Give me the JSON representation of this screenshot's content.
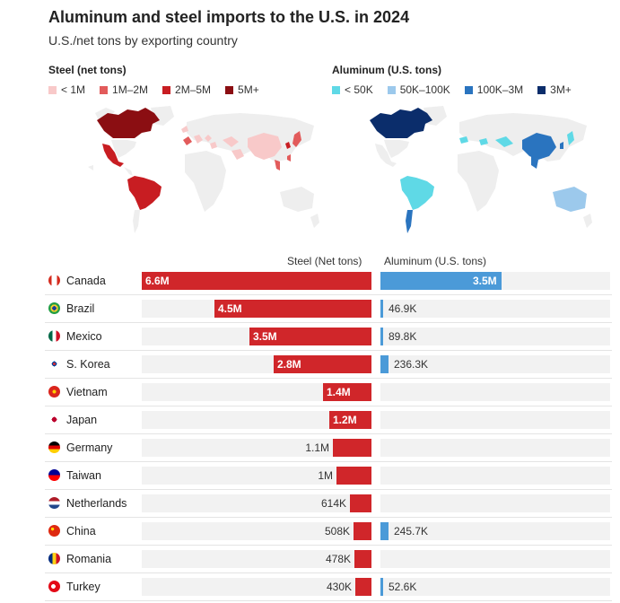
{
  "header": {
    "title": "Aluminum and steel imports to the U.S. in 2024",
    "subtitle": "U.S./net tons by exporting country"
  },
  "steel_legend": {
    "title": "Steel (net tons)",
    "items": [
      {
        "label": "< 1M",
        "color": "#f8c9c9"
      },
      {
        "label": "1M–2M",
        "color": "#e25b5b"
      },
      {
        "label": "2M–5M",
        "color": "#c81d22"
      },
      {
        "label": "5M+",
        "color": "#8b0e12"
      }
    ]
  },
  "aluminum_legend": {
    "title": "Aluminum (U.S. tons)",
    "items": [
      {
        "label": "< 50K",
        "color": "#5fd9e6"
      },
      {
        "label": "50K–100K",
        "color": "#9cc9ec"
      },
      {
        "label": "100K–3M",
        "color": "#2a74bf"
      },
      {
        "label": "3M+",
        "color": "#0b2d6b"
      }
    ]
  },
  "chart_data": {
    "type": "bar",
    "columns": {
      "steel": "Steel (Net tons)",
      "aluminum": "Aluminum (U.S. tons)"
    },
    "categories": [
      "Canada",
      "Brazil",
      "Mexico",
      "S. Korea",
      "Vietnam",
      "Japan",
      "Germany",
      "Taiwan",
      "Netherlands",
      "China",
      "Romania",
      "Turkey"
    ],
    "series": [
      {
        "name": "Steel (Net tons)",
        "values": [
          6600000,
          4500000,
          3500000,
          2800000,
          1400000,
          1200000,
          1100000,
          1000000,
          614000,
          508000,
          478000,
          430000
        ],
        "labels": [
          "6.6M",
          "4.5M",
          "3.5M",
          "2.8M",
          "1.4M",
          "1.2M",
          "1.1M",
          "1M",
          "614K",
          "508K",
          "478K",
          "430K"
        ]
      },
      {
        "name": "Aluminum (U.S. tons)",
        "values": [
          3500000,
          46900,
          89800,
          236300,
          null,
          null,
          null,
          null,
          null,
          245700,
          null,
          52600
        ],
        "labels": [
          "3.5M",
          "46.9K",
          "89.8K",
          "236.3K",
          "",
          "",
          "",
          "",
          "",
          "245.7K",
          "",
          "52.6K"
        ]
      }
    ],
    "steel_color": "#d0262a",
    "aluminum_color": "#4b9ad8"
  }
}
